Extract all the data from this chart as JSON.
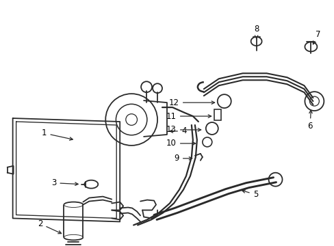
{
  "bg_color": "#ffffff",
  "lc": "#2a2a2a",
  "lw": 1.3,
  "fig_w": 4.89,
  "fig_h": 3.6,
  "dpi": 100,
  "xlim": [
    0,
    489
  ],
  "ylim": [
    0,
    360
  ]
}
